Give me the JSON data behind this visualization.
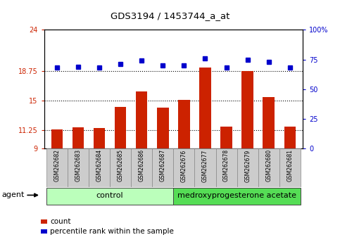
{
  "title": "GDS3194 / 1453744_a_at",
  "samples": [
    "GSM262682",
    "GSM262683",
    "GSM262684",
    "GSM262685",
    "GSM262686",
    "GSM262687",
    "GSM262676",
    "GSM262677",
    "GSM262678",
    "GSM262679",
    "GSM262680",
    "GSM262681"
  ],
  "bar_values": [
    11.4,
    11.6,
    11.55,
    14.2,
    16.2,
    14.1,
    15.1,
    19.2,
    11.7,
    18.8,
    15.5,
    11.7
  ],
  "dot_values": [
    68,
    69,
    68,
    71,
    74,
    70,
    70,
    76,
    68,
    75,
    73,
    68
  ],
  "bar_color": "#cc2200",
  "dot_color": "#0000cc",
  "ylim_left": [
    9,
    24
  ],
  "ylim_right": [
    0,
    100
  ],
  "yticks_left": [
    9,
    11.25,
    15,
    18.75,
    24
  ],
  "yticks_right": [
    0,
    25,
    50,
    75,
    100
  ],
  "ytick_labels_left": [
    "9",
    "11.25",
    "15",
    "18.75",
    "24"
  ],
  "ytick_labels_right": [
    "0",
    "25",
    "50",
    "75",
    "100%"
  ],
  "hlines": [
    11.25,
    15,
    18.75
  ],
  "group1_label": "control",
  "group2_label": "medroxyprogesterone acetate",
  "group1_color": "#bbffbb",
  "group2_color": "#55dd55",
  "agent_label": "agent",
  "legend1_label": "count",
  "legend2_label": "percentile rank within the sample",
  "bar_color_legend": "#cc2200",
  "dot_color_legend": "#0000cc",
  "bar_bottom": 9,
  "tick_bg_color": "#cccccc"
}
